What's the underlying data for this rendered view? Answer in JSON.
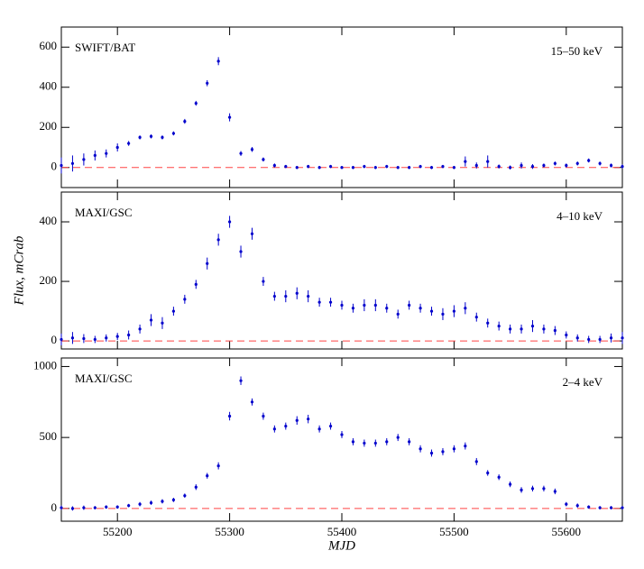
{
  "chart_data": [
    {
      "type": "scatter",
      "label": "SWIFT/BAT",
      "band": "15–50 keV",
      "color": "#0000cc",
      "zero_line": true,
      "zero_line_color": "#ff4444",
      "xlim": [
        55150,
        55650
      ],
      "xticks": [
        55200,
        55300,
        55400,
        55500,
        55600
      ],
      "ylim": [
        -100,
        700
      ],
      "yticks": [
        0,
        200,
        400,
        600
      ],
      "x": [
        55150,
        55160,
        55170,
        55180,
        55190,
        55200,
        55210,
        55220,
        55230,
        55240,
        55250,
        55260,
        55270,
        55280,
        55290,
        55300,
        55310,
        55320,
        55330,
        55340,
        55350,
        55360,
        55370,
        55380,
        55390,
        55400,
        55410,
        55420,
        55430,
        55440,
        55450,
        55460,
        55470,
        55480,
        55490,
        55500,
        55510,
        55520,
        55530,
        55540,
        55550,
        55560,
        55570,
        55580,
        55590,
        55600,
        55610,
        55620,
        55630,
        55640,
        55650
      ],
      "values": [
        10,
        20,
        40,
        60,
        70,
        100,
        120,
        150,
        155,
        150,
        170,
        230,
        320,
        420,
        530,
        250,
        70,
        90,
        40,
        10,
        5,
        0,
        5,
        0,
        5,
        0,
        0,
        5,
        0,
        5,
        0,
        0,
        5,
        0,
        5,
        0,
        30,
        10,
        30,
        5,
        0,
        10,
        5,
        10,
        20,
        10,
        20,
        35,
        20,
        10,
        5
      ],
      "errors": [
        40,
        40,
        30,
        25,
        20,
        20,
        12,
        10,
        10,
        10,
        10,
        12,
        12,
        15,
        20,
        20,
        12,
        12,
        10,
        10,
        8,
        8,
        8,
        8,
        8,
        8,
        8,
        8,
        8,
        8,
        8,
        8,
        8,
        8,
        8,
        8,
        25,
        15,
        30,
        10,
        10,
        15,
        12,
        10,
        10,
        10,
        10,
        10,
        10,
        10,
        10
      ]
    },
    {
      "type": "scatter",
      "label": "MAXI/GSC",
      "band": "4–10 keV",
      "ylabel": "Flux, mCrab",
      "color": "#0000cc",
      "zero_line": true,
      "zero_line_color": "#ff4444",
      "xlim": [
        55150,
        55650
      ],
      "xticks": [
        55200,
        55300,
        55400,
        55500,
        55600
      ],
      "ylim": [
        -27,
        500
      ],
      "yticks": [
        0,
        200,
        400
      ],
      "x": [
        55150,
        55160,
        55170,
        55180,
        55190,
        55200,
        55210,
        55220,
        55230,
        55240,
        55250,
        55260,
        55270,
        55280,
        55290,
        55300,
        55310,
        55320,
        55330,
        55340,
        55350,
        55360,
        55370,
        55380,
        55390,
        55400,
        55410,
        55420,
        55430,
        55440,
        55450,
        55460,
        55470,
        55480,
        55490,
        55500,
        55510,
        55520,
        55530,
        55540,
        55550,
        55560,
        55570,
        55580,
        55590,
        55600,
        55610,
        55620,
        55630,
        55640,
        55650
      ],
      "values": [
        5,
        10,
        8,
        5,
        10,
        15,
        20,
        40,
        70,
        60,
        100,
        140,
        190,
        260,
        340,
        400,
        300,
        360,
        200,
        150,
        150,
        160,
        150,
        130,
        130,
        120,
        110,
        120,
        120,
        110,
        90,
        120,
        110,
        100,
        90,
        100,
        110,
        80,
        60,
        50,
        40,
        40,
        50,
        40,
        35,
        20,
        10,
        5,
        5,
        10,
        10
      ],
      "errors": [
        20,
        20,
        15,
        12,
        12,
        12,
        15,
        15,
        20,
        20,
        15,
        15,
        15,
        20,
        20,
        20,
        20,
        20,
        15,
        15,
        20,
        20,
        20,
        15,
        15,
        15,
        15,
        20,
        20,
        15,
        15,
        15,
        15,
        15,
        20,
        20,
        20,
        15,
        15,
        15,
        15,
        15,
        20,
        15,
        15,
        12,
        12,
        12,
        12,
        15,
        20
      ]
    },
    {
      "type": "scatter",
      "label": "MAXI/GSC",
      "band": "2–4 keV",
      "xlabel": "MJD",
      "color": "#0000cc",
      "zero_line": true,
      "zero_line_color": "#ff4444",
      "xlim": [
        55150,
        55650
      ],
      "xticks": [
        55200,
        55300,
        55400,
        55500,
        55600
      ],
      "ylim": [
        -90,
        1060
      ],
      "yticks": [
        0,
        500,
        1000
      ],
      "x": [
        55150,
        55160,
        55170,
        55180,
        55190,
        55200,
        55210,
        55220,
        55230,
        55240,
        55250,
        55260,
        55270,
        55280,
        55290,
        55300,
        55310,
        55320,
        55330,
        55340,
        55350,
        55360,
        55370,
        55380,
        55390,
        55400,
        55410,
        55420,
        55430,
        55440,
        55450,
        55460,
        55470,
        55480,
        55490,
        55500,
        55510,
        55520,
        55530,
        55540,
        55550,
        55560,
        55570,
        55580,
        55590,
        55600,
        55610,
        55620,
        55630,
        55640,
        55650
      ],
      "values": [
        5,
        0,
        5,
        5,
        10,
        10,
        20,
        30,
        40,
        50,
        60,
        90,
        150,
        230,
        300,
        650,
        900,
        750,
        650,
        560,
        580,
        620,
        630,
        560,
        580,
        520,
        470,
        460,
        460,
        470,
        500,
        470,
        420,
        390,
        400,
        420,
        440,
        330,
        250,
        220,
        170,
        130,
        140,
        140,
        120,
        30,
        20,
        10,
        5,
        5,
        5
      ],
      "errors": [
        15,
        15,
        15,
        12,
        12,
        12,
        12,
        15,
        15,
        15,
        15,
        15,
        20,
        20,
        25,
        30,
        30,
        25,
        25,
        25,
        25,
        30,
        30,
        25,
        25,
        25,
        25,
        25,
        25,
        25,
        25,
        25,
        25,
        25,
        25,
        25,
        25,
        25,
        20,
        20,
        20,
        20,
        20,
        20,
        20,
        15,
        15,
        12,
        12,
        12,
        12
      ]
    }
  ]
}
